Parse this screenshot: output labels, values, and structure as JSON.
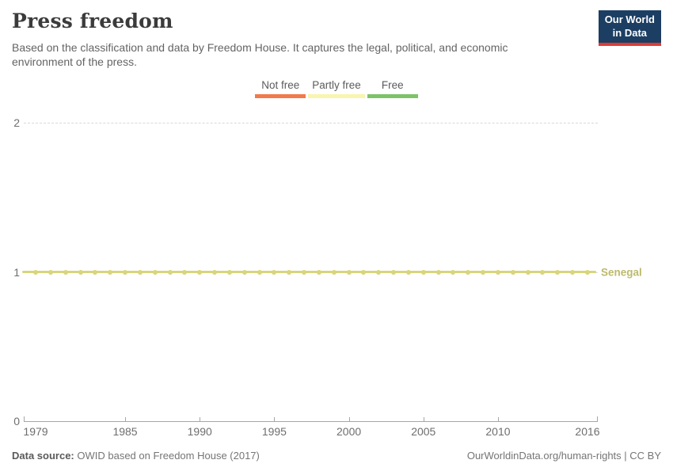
{
  "header": {
    "title": "Press freedom",
    "subtitle": "Based on the classification and data by Freedom House. It captures the legal, political, and economic environment of the press.",
    "logo_line1": "Our World",
    "logo_line2": "in Data",
    "logo_bg_color": "#1c3e63",
    "logo_accent_color": "#dd3a34"
  },
  "legend": {
    "items": [
      {
        "label": "Not free",
        "color": "#f2794b"
      },
      {
        "label": "Partly free",
        "color": "#f8f5ae"
      },
      {
        "label": "Free",
        "color": "#7cc368"
      }
    ]
  },
  "chart_data": {
    "type": "line",
    "title": "Press freedom",
    "x": [
      1979,
      1980,
      1981,
      1982,
      1983,
      1984,
      1985,
      1986,
      1987,
      1988,
      1989,
      1990,
      1991,
      1992,
      1993,
      1994,
      1995,
      1996,
      1997,
      1998,
      1999,
      2000,
      2001,
      2002,
      2003,
      2004,
      2005,
      2006,
      2007,
      2008,
      2009,
      2010,
      2011,
      2012,
      2013,
      2014,
      2015,
      2016
    ],
    "series": [
      {
        "name": "Senegal",
        "color": "#d8d57c",
        "values": [
          1,
          1,
          1,
          1,
          1,
          1,
          1,
          1,
          1,
          1,
          1,
          1,
          1,
          1,
          1,
          1,
          1,
          1,
          1,
          1,
          1,
          1,
          1,
          1,
          1,
          1,
          1,
          1,
          1,
          1,
          1,
          1,
          1,
          1,
          1,
          1,
          1,
          1
        ]
      }
    ],
    "entity_label": "Senegal",
    "entity_label_color": "#bdba6c",
    "ylim": [
      0,
      2
    ],
    "yticks": [
      0,
      1,
      2
    ],
    "xticks": [
      1979,
      1985,
      1990,
      1995,
      2000,
      2005,
      2010,
      2016
    ],
    "grid": "horizontal dashed gridlines at y=1 and y=2; solid x-axis at y=0",
    "legend_position": "top center",
    "legend_entries": [
      "Not free",
      "Partly free",
      "Free"
    ]
  },
  "footer": {
    "source_label": "Data source:",
    "source_text": " OWID based on Freedom House (2017)",
    "link": "OurWorldinData.org/human-rights | CC BY"
  }
}
